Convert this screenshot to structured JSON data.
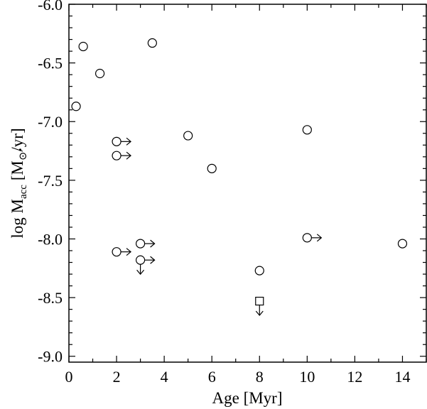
{
  "chart_data": {
    "type": "scatter",
    "xlabel": "Age [Myr]",
    "ylabel": {
      "prefix": "log ",
      "symbol": "M",
      "subscript": "acc",
      "unit_open": " [M",
      "sun_symbol": "⊙",
      "unit_close": "/yr]"
    },
    "xlim": [
      0,
      15
    ],
    "ylim": [
      -9.05,
      -6.0
    ],
    "x_ticks": [
      0,
      2,
      4,
      6,
      8,
      10,
      12,
      14
    ],
    "x_tick_labels": [
      "0",
      "2",
      "4",
      "6",
      "8",
      "10",
      "12",
      "14"
    ],
    "y_ticks": [
      -6.0,
      -6.5,
      -7.0,
      -7.5,
      -8.0,
      -8.5,
      -9.0
    ],
    "y_tick_labels": [
      "-6.0",
      "-6.5",
      "-7.0",
      "-7.5",
      "-8.0",
      "-8.5",
      "-9.0"
    ],
    "grid": false,
    "points": [
      {
        "x": 0.3,
        "y": -6.87,
        "marker": "circle"
      },
      {
        "x": 0.6,
        "y": -6.36,
        "marker": "circle"
      },
      {
        "x": 1.3,
        "y": -6.59,
        "marker": "circle"
      },
      {
        "x": 3.5,
        "y": -6.33,
        "marker": "circle"
      },
      {
        "x": 5.0,
        "y": -7.12,
        "marker": "circle"
      },
      {
        "x": 6.0,
        "y": -7.4,
        "marker": "circle"
      },
      {
        "x": 10.0,
        "y": -7.07,
        "marker": "circle"
      },
      {
        "x": 8.0,
        "y": -8.27,
        "marker": "circle"
      },
      {
        "x": 14.0,
        "y": -8.04,
        "marker": "circle"
      },
      {
        "x": 2.0,
        "y": -7.17,
        "marker": "circle",
        "limit": "lower-x"
      },
      {
        "x": 2.0,
        "y": -7.29,
        "marker": "circle",
        "limit": "lower-x"
      },
      {
        "x": 2.0,
        "y": -8.11,
        "marker": "circle",
        "limit": "lower-x"
      },
      {
        "x": 3.0,
        "y": -8.04,
        "marker": "circle",
        "limit": "lower-x"
      },
      {
        "x": 3.0,
        "y": -8.18,
        "marker": "circle",
        "limit": "lower-x, upper-y"
      },
      {
        "x": 10.0,
        "y": -7.99,
        "marker": "circle",
        "limit": "lower-x"
      },
      {
        "x": 8.0,
        "y": -8.53,
        "marker": "square",
        "limit": "upper-y"
      }
    ]
  }
}
